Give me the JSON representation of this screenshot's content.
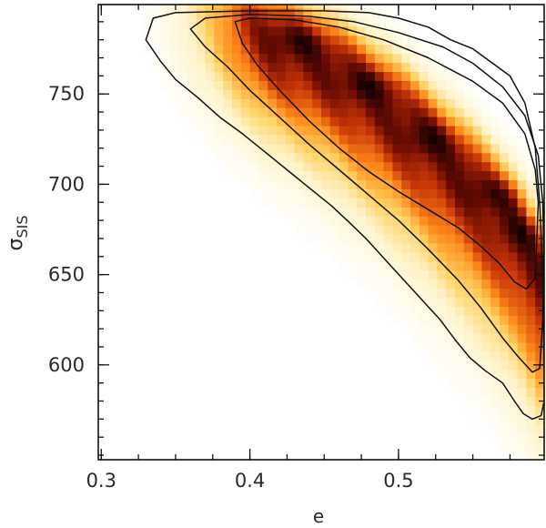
{
  "chart_data": {
    "type": "heatmap",
    "title": "",
    "xlabel": "e",
    "ylabel_main": "σ",
    "ylabel_sub": "SIS",
    "xlim": [
      0.298,
      0.598
    ],
    "ylim": [
      547.5,
      799.5
    ],
    "x_ticks": [
      0.3,
      0.4,
      0.5
    ],
    "x_tick_labels": [
      "0.3",
      "0.4",
      "0.5"
    ],
    "y_ticks": [
      600,
      650,
      700,
      750
    ],
    "y_tick_labels": [
      "600",
      "650",
      "700",
      "750"
    ],
    "x_minor_step": 0.025,
    "y_minor_step": 10,
    "grid": false,
    "colormap": [
      "#ffffff",
      "#fff3c9",
      "#ffd160",
      "#ff8a1a",
      "#c83508",
      "#6a0c02",
      "#160101"
    ],
    "density_ridge": {
      "x": [
        0.34,
        0.37,
        0.4,
        0.43,
        0.46,
        0.49,
        0.52,
        0.55,
        0.58,
        0.598
      ],
      "sigma": [
        800,
        795,
        788,
        778,
        765,
        748,
        728,
        705,
        678,
        650
      ]
    },
    "peaks": [
      {
        "e": 0.435,
        "sigma": 780
      },
      {
        "e": 0.48,
        "sigma": 755
      },
      {
        "e": 0.52,
        "sigma": 725
      },
      {
        "e": 0.565,
        "sigma": 695
      },
      {
        "e": 0.588,
        "sigma": 674
      }
    ],
    "contours": [
      {
        "level": "inner",
        "points": [
          [
            0.39,
            790
          ],
          [
            0.4,
            792
          ],
          [
            0.43,
            791
          ],
          [
            0.46,
            787
          ],
          [
            0.49,
            780
          ],
          [
            0.52,
            770
          ],
          [
            0.55,
            757
          ],
          [
            0.57,
            745
          ],
          [
            0.585,
            728
          ],
          [
            0.592,
            708
          ],
          [
            0.594,
            690
          ],
          [
            0.593,
            668
          ],
          [
            0.592,
            648
          ],
          [
            0.586,
            642
          ],
          [
            0.578,
            646
          ],
          [
            0.568,
            656
          ],
          [
            0.555,
            666
          ],
          [
            0.54,
            676
          ],
          [
            0.52,
            686
          ],
          [
            0.5,
            696
          ],
          [
            0.48,
            707
          ],
          [
            0.46,
            720
          ],
          [
            0.44,
            735
          ],
          [
            0.42,
            752
          ],
          [
            0.405,
            766
          ],
          [
            0.395,
            778
          ],
          [
            0.39,
            790
          ]
        ]
      },
      {
        "level": "middle",
        "points": [
          [
            0.36,
            786
          ],
          [
            0.37,
            792
          ],
          [
            0.4,
            794
          ],
          [
            0.44,
            793
          ],
          [
            0.47,
            790
          ],
          [
            0.5,
            784
          ],
          [
            0.53,
            776
          ],
          [
            0.55,
            767
          ],
          [
            0.57,
            754
          ],
          [
            0.585,
            738
          ],
          [
            0.594,
            716
          ],
          [
            0.597,
            690
          ],
          [
            0.598,
            660
          ],
          [
            0.597,
            625
          ],
          [
            0.595,
            598
          ],
          [
            0.59,
            596
          ],
          [
            0.58,
            605
          ],
          [
            0.57,
            615
          ],
          [
            0.555,
            632
          ],
          [
            0.54,
            647
          ],
          [
            0.52,
            664
          ],
          [
            0.5,
            680
          ],
          [
            0.48,
            694
          ],
          [
            0.46,
            708
          ],
          [
            0.44,
            722
          ],
          [
            0.42,
            737
          ],
          [
            0.4,
            752
          ],
          [
            0.385,
            765
          ],
          [
            0.37,
            776
          ],
          [
            0.36,
            786
          ]
        ]
      },
      {
        "level": "outer",
        "points": [
          [
            0.33,
            780
          ],
          [
            0.335,
            792
          ],
          [
            0.35,
            795
          ],
          [
            0.4,
            796
          ],
          [
            0.45,
            796
          ],
          [
            0.48,
            795
          ],
          [
            0.5,
            792
          ],
          [
            0.52,
            787
          ],
          [
            0.535,
            780
          ],
          [
            0.55,
            775
          ],
          [
            0.565,
            766
          ],
          [
            0.575,
            760
          ],
          [
            0.585,
            745
          ],
          [
            0.592,
            720
          ],
          [
            0.595,
            690
          ],
          [
            0.597,
            650
          ],
          [
            0.598,
            600
          ],
          [
            0.598,
            580
          ],
          [
            0.596,
            572
          ],
          [
            0.59,
            570
          ],
          [
            0.584,
            573
          ],
          [
            0.578,
            580
          ],
          [
            0.57,
            590
          ],
          [
            0.558,
            597
          ],
          [
            0.548,
            604
          ],
          [
            0.538,
            614
          ],
          [
            0.528,
            625
          ],
          [
            0.518,
            634
          ],
          [
            0.508,
            643
          ],
          [
            0.498,
            652
          ],
          [
            0.488,
            661
          ],
          [
            0.478,
            670
          ],
          [
            0.468,
            678
          ],
          [
            0.455,
            688
          ],
          [
            0.44,
            698
          ],
          [
            0.425,
            708
          ],
          [
            0.41,
            718
          ],
          [
            0.395,
            728
          ],
          [
            0.38,
            737
          ],
          [
            0.365,
            748
          ],
          [
            0.35,
            758
          ],
          [
            0.34,
            768
          ],
          [
            0.33,
            780
          ]
        ]
      }
    ]
  }
}
